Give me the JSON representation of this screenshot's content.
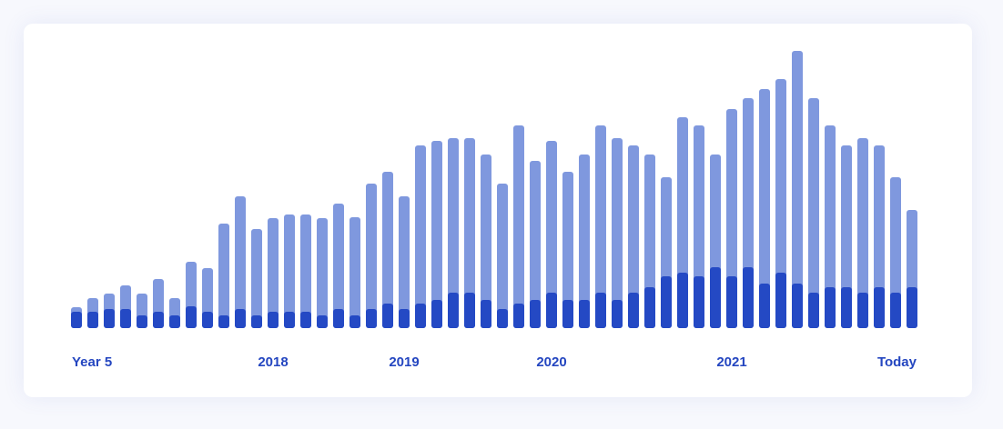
{
  "chart_data": {
    "type": "bar",
    "categories": [
      "Year 5",
      null,
      null,
      null,
      null,
      null,
      null,
      null,
      null,
      null,
      null,
      null,
      "2018",
      null,
      null,
      null,
      null,
      null,
      null,
      null,
      "2019",
      null,
      null,
      null,
      null,
      null,
      null,
      null,
      null,
      "2020",
      null,
      null,
      null,
      null,
      null,
      null,
      null,
      null,
      null,
      null,
      "2021",
      null,
      null,
      null,
      null,
      null,
      null,
      null,
      null,
      null,
      null,
      "Today"
    ],
    "series": [
      {
        "color": "#7f98de",
        "values": [
          23,
          33,
          38,
          47,
          38,
          54,
          33,
          73,
          66,
          115,
          145,
          109,
          121,
          125,
          125,
          121,
          137,
          122,
          159,
          172,
          145,
          201,
          206,
          209,
          209,
          191,
          159,
          223,
          184,
          206,
          172,
          191,
          223,
          209,
          201,
          191,
          166,
          232,
          223,
          191,
          241,
          253,
          263,
          274,
          305,
          253,
          223,
          201,
          209,
          201,
          166,
          130
        ]
      },
      {
        "color": "#2449c4",
        "values": [
          18,
          18,
          21,
          21,
          14,
          18,
          14,
          24,
          18,
          14,
          21,
          14,
          18,
          18,
          18,
          14,
          21,
          14,
          21,
          27,
          21,
          27,
          31,
          39,
          39,
          31,
          21,
          27,
          31,
          39,
          31,
          31,
          39,
          31,
          39,
          45,
          57,
          61,
          57,
          67,
          57,
          67,
          49,
          61,
          49,
          39,
          45,
          45,
          39,
          45,
          39,
          45
        ]
      }
    ]
  }
}
